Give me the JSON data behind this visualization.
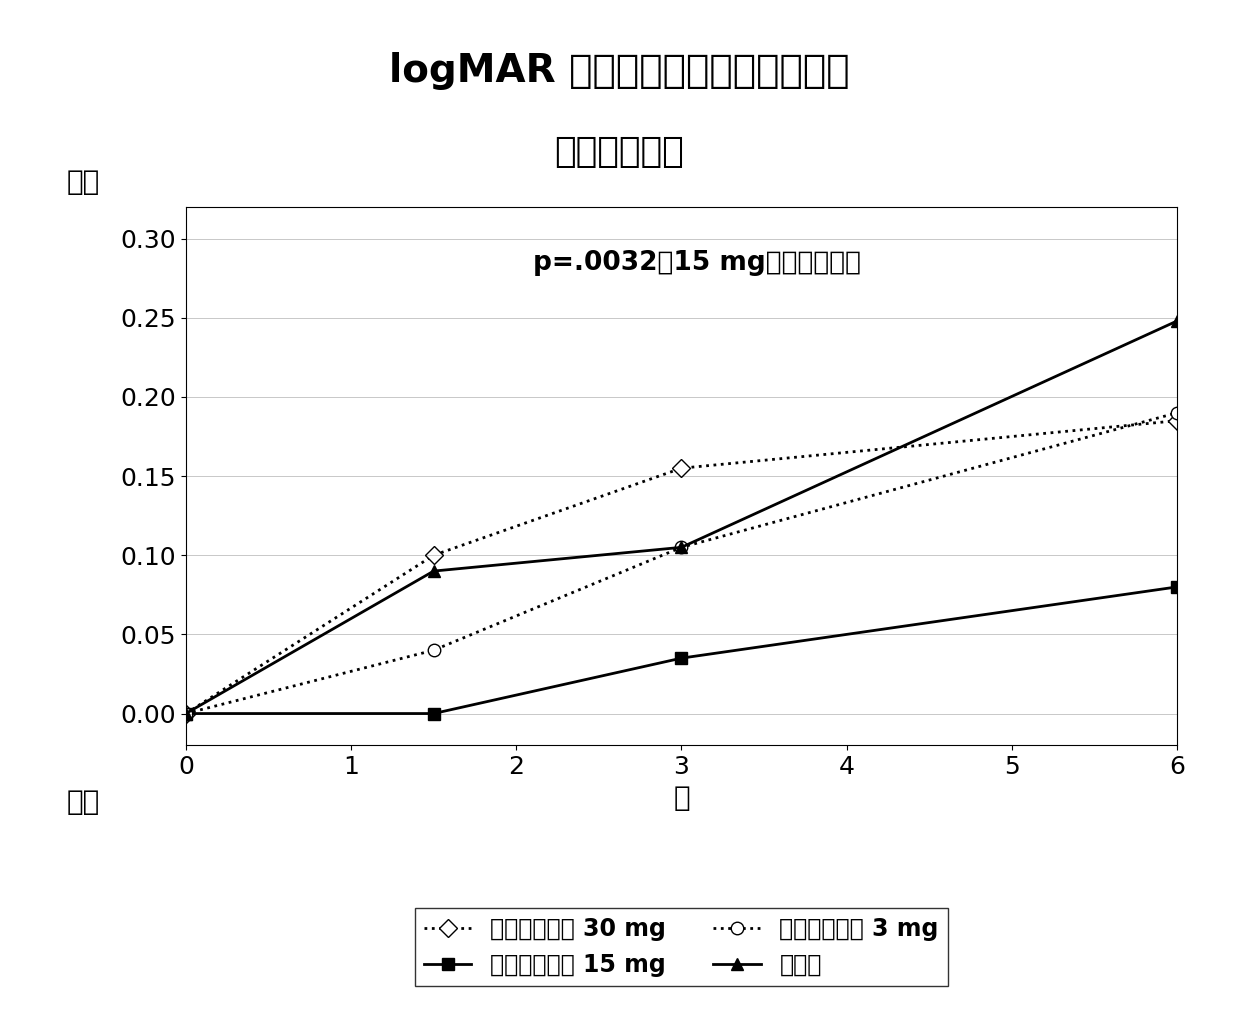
{
  "title_line1": "logMAR 视力评分较基线的平均变化",
  "title_line2": "（总体分析）",
  "annotation": "p=.0032（15 mg对比安慰剂）",
  "xlabel": "月",
  "ylabel_top": "恶化",
  "ylabel_bottom": "好转",
  "xlim": [
    0,
    6
  ],
  "ylim": [
    -0.02,
    0.32
  ],
  "yticks": [
    0,
    0.05,
    0.1,
    0.15,
    0.2,
    0.25,
    0.3
  ],
  "xticks": [
    0,
    1,
    2,
    3,
    4,
    5,
    6
  ],
  "series": {
    "30mg": {
      "x": [
        0,
        1.5,
        3,
        6
      ],
      "y": [
        0,
        0.1,
        0.155,
        0.185
      ],
      "label": "乙酸阿奈可他 30 mg",
      "color": "#000000",
      "linestyle": "dotted",
      "marker": "D",
      "markersize": 9,
      "linewidth": 2.0,
      "markerfacecolor": "white"
    },
    "15mg": {
      "x": [
        0,
        1.5,
        3,
        6
      ],
      "y": [
        0,
        0.0,
        0.035,
        0.08
      ],
      "label": "乙酸阿奈可他 15 mg",
      "color": "#000000",
      "linestyle": "solid",
      "marker": "s",
      "markersize": 8,
      "linewidth": 2.0,
      "markerfacecolor": "#000000"
    },
    "3mg": {
      "x": [
        0,
        1.5,
        3,
        6
      ],
      "y": [
        0,
        0.04,
        0.105,
        0.19
      ],
      "label": "乙酸阿奈可他 3 mg",
      "color": "#000000",
      "linestyle": "dotted",
      "marker": "o",
      "markersize": 9,
      "linewidth": 2.0,
      "markerfacecolor": "white"
    },
    "placebo": {
      "x": [
        0,
        1.5,
        3,
        6
      ],
      "y": [
        0,
        0.09,
        0.105,
        0.248
      ],
      "label": "安慰剂",
      "color": "#000000",
      "linestyle": "solid",
      "marker": "^",
      "markersize": 9,
      "linewidth": 2.0,
      "markerfacecolor": "#000000"
    }
  },
  "background_color": "#ffffff",
  "plot_bg_color": "#ffffff",
  "grid": false,
  "title_fontsize": 28,
  "subtitle_fontsize": 26,
  "axis_label_fontsize": 20,
  "tick_fontsize": 18,
  "annotation_fontsize": 19,
  "legend_fontsize": 17
}
